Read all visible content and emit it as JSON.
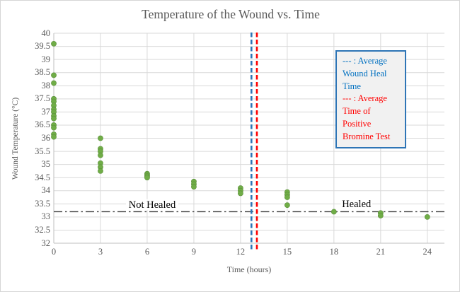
{
  "colors": {
    "point_green": "#70AD47",
    "point_green_edge": "#5B8F3C",
    "blue_ref_line": "#2E75B6",
    "red_ref_line": "#FF0000",
    "healed_line": "#3B3B3B",
    "gridline": "#D9D9D9",
    "axis_line": "#BFBFBF",
    "label_gray": "#595959",
    "annotation_black": "#000000",
    "legend_border": "#2E75B6",
    "legend_bg": "#F1F1F1",
    "legend_blue_text": "#0070C0",
    "legend_red_text": "#FF0000"
  },
  "legend": {
    "blue_label": "--- : Average Wound Heal Time",
    "red_label": "--- : Average Time of Positive Bromine Test"
  },
  "chart_data": {
    "type": "scatter",
    "title": "Temperature of the Wound vs. Time",
    "xlabel": "Time (hours)",
    "ylabel": "Wound Temperature (°C)",
    "xlim": [
      0,
      25.1
    ],
    "ylim": [
      32,
      40
    ],
    "grid": true,
    "x_axis": {
      "tick_values": [
        0,
        3,
        6,
        9,
        12,
        15,
        18,
        21,
        24
      ],
      "tick_labels": [
        "0",
        "3",
        "6",
        "9",
        "12",
        "15",
        "18",
        "21",
        "24"
      ]
    },
    "y_axis": {
      "tick_values": [
        40,
        39.5,
        39,
        38.5,
        38,
        37.5,
        37,
        36.5,
        36,
        35.5,
        35,
        34.5,
        34,
        33.5,
        33,
        32.5,
        32
      ],
      "tick_labels": [
        "40",
        "39.5",
        "39",
        "38.5",
        "38",
        "37.5",
        "37",
        "36.5",
        "36",
        "35.5",
        "35",
        "34.5",
        "34",
        "33.5",
        "33",
        "32.5",
        "32"
      ]
    },
    "series": [
      {
        "x": 0,
        "temps": [
          39.6,
          38.4,
          38.1,
          37.5,
          37.4,
          37.25,
          37.1,
          37.0,
          36.85,
          36.75,
          36.5,
          36.4,
          36.15,
          36.05
        ]
      },
      {
        "x": 3,
        "temps": [
          36.0,
          35.6,
          35.5,
          35.35,
          35.05,
          34.9,
          34.75
        ]
      },
      {
        "x": 6,
        "temps": [
          34.65,
          34.6,
          34.55,
          34.5
        ]
      },
      {
        "x": 9,
        "temps": [
          34.35,
          34.25,
          34.15
        ]
      },
      {
        "x": 12,
        "temps": [
          34.1,
          34.0,
          33.9
        ]
      },
      {
        "x": 15,
        "temps": [
          33.95,
          33.85,
          33.75,
          33.45
        ]
      },
      {
        "x": 18,
        "temps": [
          33.2
        ]
      },
      {
        "x": 21,
        "temps": [
          33.15,
          33.05
        ]
      },
      {
        "x": 24,
        "temps": [
          33.0
        ]
      }
    ],
    "reference_lines": {
      "avg_wound_heal_time_hours": 12.7,
      "avg_positive_bromine_test_hours": 13.05,
      "healed_threshold_temp_c": 33.2
    },
    "annotations": [
      {
        "label": "Not Healed",
        "x_hours": 6.32,
        "y_temp": 33.35
      },
      {
        "label": "Healed",
        "x_hours": 19.45,
        "y_temp": 33.37
      }
    ],
    "legend_position": "inside-top-right"
  }
}
